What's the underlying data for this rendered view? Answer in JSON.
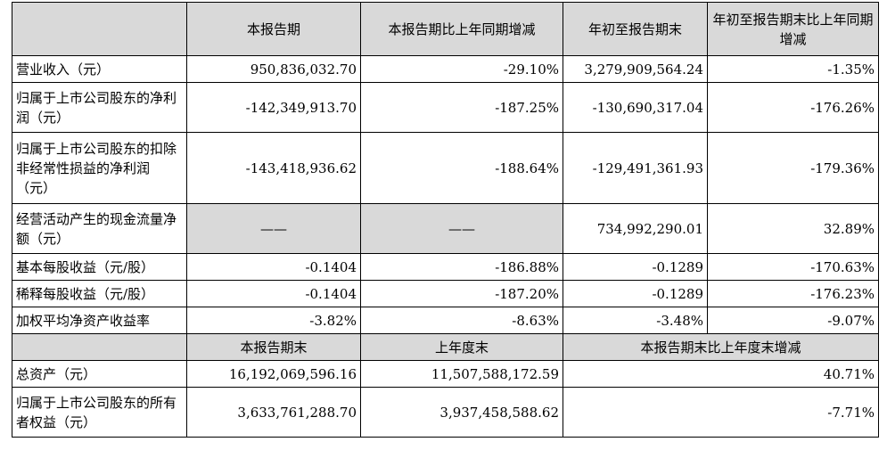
{
  "header1": {
    "corner": "",
    "col1": "本报告期",
    "col2": "本报告期比上年同期增减",
    "col3": "年初至报告期末",
    "col4": "年初至报告期末比上年同期增减"
  },
  "rows1": [
    {
      "label": "营业收入（元）",
      "v1": "950,836,032.70",
      "v2": "-29.10%",
      "v3": "3,279,909,564.24",
      "v4": "-1.35%"
    },
    {
      "label": "归属于上市公司股东的净利润（元）",
      "v1": "-142,349,913.70",
      "v2": "-187.25%",
      "v3": "-130,690,317.04",
      "v4": "-176.26%"
    },
    {
      "label": "归属于上市公司股东的扣除非经常性损益的净利润（元）",
      "v1": "-143,418,936.62",
      "v2": "-188.64%",
      "v3": "-129,491,361.93",
      "v4": "-179.36%"
    },
    {
      "label": "经营活动产生的现金流量净额（元）",
      "v1": "——",
      "v2": "——",
      "v3": "734,992,290.01",
      "v4": "32.89%"
    },
    {
      "label": "基本每股收益（元/股）",
      "v1": "-0.1404",
      "v2": "-186.88%",
      "v3": "-0.1289",
      "v4": "-170.63%"
    },
    {
      "label": "稀释每股收益（元/股）",
      "v1": "-0.1404",
      "v2": "-187.20%",
      "v3": "-0.1289",
      "v4": "-176.23%"
    },
    {
      "label": "加权平均净资产收益率",
      "v1": "-3.82%",
      "v2": "-8.63%",
      "v3": "-3.48%",
      "v4": "-9.07%"
    }
  ],
  "header2": {
    "corner": "",
    "col1": "本报告期末",
    "col2": "上年度末",
    "col3": "本报告期末比上年度末增减"
  },
  "rows2": [
    {
      "label": "总资产（元）",
      "v1": "16,192,069,596.16",
      "v2": "11,507,588,172.59",
      "v3": "40.71%"
    },
    {
      "label": "归属于上市公司股东的所有者权益（元）",
      "v1": "3,633,761,288.70",
      "v2": "3,937,458,588.62",
      "v3": "-7.71%"
    }
  ]
}
